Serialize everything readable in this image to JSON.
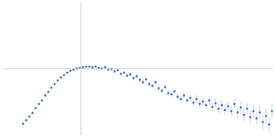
{
  "chart_data": {
    "type": "scatter",
    "x": [
      0.45,
      0.52,
      0.59,
      0.66,
      0.73,
      0.8,
      0.87,
      0.94,
      1.01,
      1.08,
      1.15,
      1.22,
      1.29,
      1.36,
      1.43,
      1.5,
      1.57,
      1.64,
      1.71,
      1.78,
      1.85,
      1.92,
      1.99,
      2.06,
      2.13,
      2.2,
      2.27,
      2.34,
      2.41,
      2.48,
      2.55,
      2.62,
      2.69,
      2.76,
      2.83,
      2.9,
      2.97,
      3.04,
      3.11,
      3.18,
      3.25,
      3.32,
      3.39,
      3.46,
      3.53,
      3.6,
      3.67,
      3.74,
      3.81,
      3.88,
      3.95,
      4.02,
      4.09,
      4.16,
      4.23,
      4.3,
      4.37,
      4.44,
      4.51,
      4.58,
      4.65,
      4.72,
      4.79,
      4.86,
      4.93,
      5.0,
      5.07,
      5.14,
      5.21,
      5.28,
      5.35,
      5.42,
      5.49,
      5.56,
      5.63,
      5.7,
      5.77,
      5.84,
      5.91,
      5.97
    ],
    "values": [
      0.19,
      0.25,
      0.31,
      0.37,
      0.45,
      0.52,
      0.58,
      0.66,
      0.72,
      0.79,
      0.85,
      0.91,
      0.96,
      1.0,
      1.04,
      1.07,
      1.09,
      1.11,
      1.12,
      1.13,
      1.14,
      1.14,
      1.13,
      1.14,
      1.12,
      1.11,
      1.13,
      1.09,
      1.1,
      1.06,
      1.08,
      1.02,
      1.04,
      0.99,
      1.01,
      0.95,
      0.98,
      0.92,
      0.88,
      0.93,
      0.85,
      0.82,
      0.88,
      0.78,
      0.74,
      0.8,
      0.7,
      0.68,
      0.73,
      0.64,
      0.6,
      0.66,
      0.58,
      0.62,
      0.54,
      0.6,
      0.52,
      0.56,
      0.5,
      0.58,
      0.47,
      0.53,
      0.44,
      0.5,
      0.42,
      0.48,
      0.4,
      0.52,
      0.38,
      0.46,
      0.34,
      0.44,
      0.3,
      0.4,
      0.28,
      0.38,
      0.22,
      0.32,
      0.18,
      0.4
    ],
    "errors": [
      0.005,
      0.005,
      0.005,
      0.006,
      0.006,
      0.006,
      0.006,
      0.007,
      0.007,
      0.007,
      0.008,
      0.008,
      0.009,
      0.009,
      0.01,
      0.01,
      0.011,
      0.011,
      0.012,
      0.012,
      0.015,
      0.016,
      0.017,
      0.018,
      0.019,
      0.02,
      0.021,
      0.022,
      0.023,
      0.024,
      0.026,
      0.027,
      0.028,
      0.03,
      0.031,
      0.032,
      0.034,
      0.035,
      0.036,
      0.038,
      0.04,
      0.041,
      0.043,
      0.044,
      0.046,
      0.047,
      0.049,
      0.05,
      0.052,
      0.054,
      0.056,
      0.058,
      0.06,
      0.062,
      0.064,
      0.066,
      0.068,
      0.07,
      0.072,
      0.074,
      0.076,
      0.078,
      0.08,
      0.083,
      0.085,
      0.088,
      0.09,
      0.093,
      0.095,
      0.098,
      0.1,
      0.103,
      0.106,
      0.109,
      0.112,
      0.115,
      0.118,
      0.121,
      0.124,
      0.127
    ],
    "color": "#3d6cc0",
    "marker": "circle",
    "xlim": [
      0,
      6
    ],
    "ylim": [
      0,
      2.2
    ],
    "xticks": [],
    "yticks": [],
    "reference_lines": {
      "x": 1.732,
      "y": 1.104
    },
    "grid": false,
    "tick_labels": false
  }
}
